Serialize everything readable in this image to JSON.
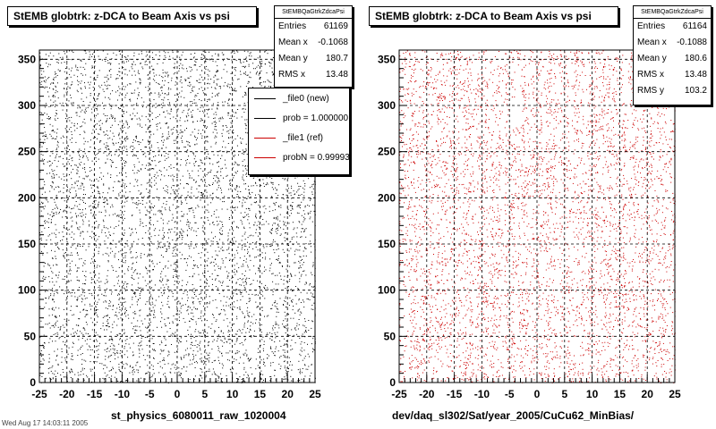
{
  "chart_data": [
    {
      "type": "scatter",
      "title": "StEMB globtrk: z-DCA to Beam Axis vs psi",
      "xlabel": "st_physics_6080011_raw_1020004",
      "ylabel": "",
      "xlim": [
        -25,
        25
      ],
      "ylim": [
        0,
        360
      ],
      "xticks": [
        -25,
        -20,
        -15,
        -10,
        -5,
        0,
        5,
        10,
        15,
        20,
        25
      ],
      "yticks": [
        0,
        50,
        100,
        150,
        200,
        250,
        300,
        350
      ],
      "grid": true,
      "marker_color": "#000000",
      "stats": {
        "name": "StEMBQaGtrkZdcaPsi",
        "rows": [
          {
            "label": "Entries",
            "value": "61169"
          },
          {
            "label": "Mean x",
            "value": "-0.1068"
          },
          {
            "label": "Mean y",
            "value": "180.7"
          },
          {
            "label": "RMS x",
            "value": "13.48"
          }
        ]
      },
      "legend": {
        "placement": "top-right",
        "entries": [
          {
            "label": "_file0 (new)",
            "color": "#000000"
          },
          {
            "label": "prob = 1.000000",
            "color": "#000000"
          },
          {
            "label": "_file1 (ref)",
            "color": "#cc0000"
          },
          {
            "label": "probN = 0.99993",
            "color": "#cc0000"
          }
        ]
      }
    },
    {
      "type": "scatter",
      "title": "StEMB globtrk: z-DCA to Beam Axis vs psi",
      "xlabel": "dev/daq_sl302/Sat/year_2005/CuCu62_MinBias/",
      "ylabel": "",
      "xlim": [
        -25,
        25
      ],
      "ylim": [
        0,
        360
      ],
      "xticks": [
        -25,
        -20,
        -15,
        -10,
        -5,
        0,
        5,
        10,
        15,
        20,
        25
      ],
      "yticks": [
        0,
        50,
        100,
        150,
        200,
        250,
        300,
        350
      ],
      "grid": true,
      "marker_color": "#cc0000",
      "stats": {
        "name": "StEMBQaGtrkZdcaPsi",
        "rows": [
          {
            "label": "Entries",
            "value": "61164"
          },
          {
            "label": "Mean x",
            "value": "-0.1088"
          },
          {
            "label": "Mean y",
            "value": "180.6"
          },
          {
            "label": "RMS x",
            "value": "13.48"
          },
          {
            "label": "RMS y",
            "value": "103.2"
          }
        ]
      }
    }
  ],
  "footer": "Wed Aug 17 14:03:11 2005"
}
